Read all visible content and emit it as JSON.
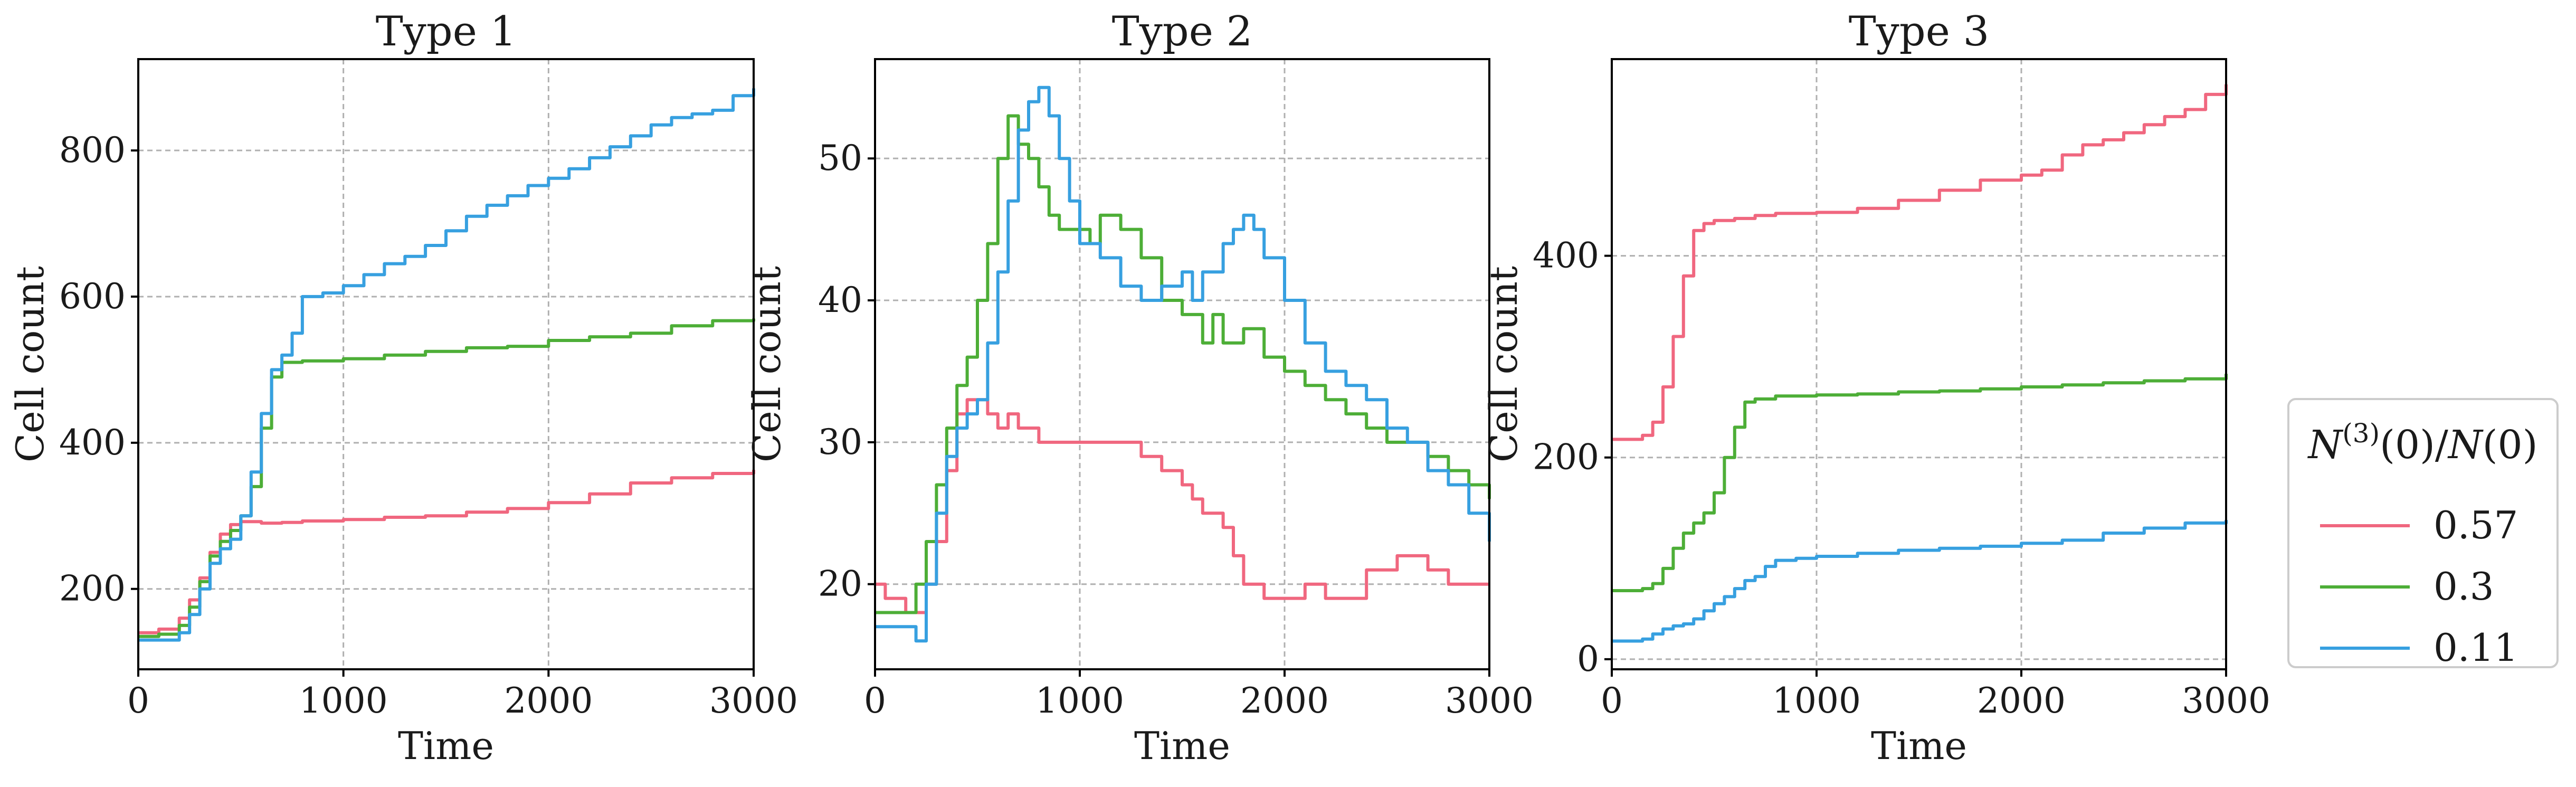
{
  "chart_data": [
    {
      "type": "line",
      "title": "Type 1",
      "xlabel": "Time",
      "ylabel": "Cell count",
      "xlim": [
        0,
        3000
      ],
      "ylim": [
        90,
        925
      ],
      "xticks": [
        "0",
        "1000",
        "2000",
        "3000"
      ],
      "xtick_values": [
        0,
        1000,
        2000,
        3000
      ],
      "yticks": [
        "200",
        "400",
        "600",
        "800"
      ],
      "ytick_values": [
        200,
        400,
        600,
        800
      ],
      "grid": true,
      "series": [
        {
          "name": "0.57",
          "color": "#f0677f",
          "x": [
            0,
            100,
            200,
            250,
            300,
            350,
            400,
            450,
            500,
            600,
            700,
            800,
            1000,
            1200,
            1400,
            1600,
            1800,
            2000,
            2200,
            2400,
            2600,
            2800,
            3000
          ],
          "y": [
            140,
            145,
            160,
            185,
            215,
            250,
            275,
            288,
            292,
            290,
            291,
            293,
            295,
            298,
            300,
            305,
            310,
            318,
            330,
            345,
            352,
            358,
            363
          ]
        },
        {
          "name": "0.3",
          "color": "#4dae37",
          "x": [
            0,
            100,
            200,
            250,
            300,
            350,
            400,
            450,
            500,
            550,
            600,
            650,
            700,
            800,
            1000,
            1200,
            1400,
            1600,
            1800,
            2000,
            2200,
            2400,
            2600,
            2800,
            3000
          ],
          "y": [
            135,
            138,
            150,
            175,
            210,
            245,
            265,
            280,
            300,
            340,
            420,
            490,
            510,
            512,
            515,
            520,
            525,
            530,
            532,
            540,
            545,
            550,
            560,
            567,
            570
          ]
        },
        {
          "name": "0.11",
          "color": "#37a0e0",
          "x": [
            0,
            100,
            200,
            250,
            300,
            350,
            400,
            450,
            500,
            550,
            600,
            650,
            700,
            750,
            800,
            900,
            1000,
            1100,
            1200,
            1300,
            1400,
            1500,
            1600,
            1700,
            1800,
            1900,
            2000,
            2100,
            2200,
            2300,
            2400,
            2500,
            2600,
            2700,
            2800,
            2900,
            3000
          ],
          "y": [
            130,
            130,
            140,
            165,
            200,
            235,
            255,
            268,
            300,
            360,
            440,
            500,
            520,
            550,
            600,
            605,
            615,
            630,
            645,
            655,
            670,
            690,
            710,
            725,
            738,
            752,
            762,
            775,
            790,
            805,
            820,
            835,
            845,
            850,
            855,
            875,
            885
          ]
        }
      ]
    },
    {
      "type": "line",
      "title": "Type 2",
      "xlabel": "Time",
      "ylabel": "Cell count",
      "xlim": [
        0,
        3000
      ],
      "ylim": [
        14,
        57
      ],
      "xticks": [
        "0",
        "1000",
        "2000",
        "3000"
      ],
      "xtick_values": [
        0,
        1000,
        2000,
        3000
      ],
      "yticks": [
        "20",
        "30",
        "40",
        "50"
      ],
      "ytick_values": [
        20,
        30,
        40,
        50
      ],
      "grid": true,
      "series": [
        {
          "name": "0.57",
          "color": "#f0677f",
          "x": [
            0,
            50,
            150,
            250,
            300,
            350,
            400,
            450,
            500,
            550,
            600,
            650,
            700,
            800,
            1000,
            1200,
            1300,
            1400,
            1500,
            1550,
            1600,
            1700,
            1750,
            1800,
            1900,
            2000,
            2100,
            2200,
            2400,
            2500,
            2550,
            2650,
            2700,
            2800,
            3000
          ],
          "y": [
            20,
            19,
            18,
            20,
            23,
            28,
            32,
            33,
            33,
            32,
            31,
            32,
            31,
            30,
            30,
            30,
            29,
            28,
            27,
            26,
            25,
            24,
            22,
            20,
            19,
            19,
            20,
            19,
            21,
            21,
            22,
            22,
            21,
            20,
            20
          ]
        },
        {
          "name": "0.3",
          "color": "#4dae37",
          "x": [
            0,
            100,
            200,
            250,
            300,
            350,
            400,
            450,
            500,
            550,
            600,
            650,
            700,
            750,
            800,
            850,
            900,
            1000,
            1050,
            1100,
            1200,
            1300,
            1400,
            1500,
            1600,
            1650,
            1700,
            1800,
            1900,
            2000,
            2100,
            2200,
            2300,
            2400,
            2500,
            2600,
            2700,
            2800,
            2900,
            3000
          ],
          "y": [
            18,
            18,
            20,
            23,
            27,
            31,
            34,
            36,
            40,
            44,
            50,
            53,
            51,
            50,
            48,
            46,
            45,
            45,
            44,
            46,
            45,
            43,
            40,
            39,
            37,
            39,
            37,
            38,
            36,
            35,
            34,
            33,
            32,
            31,
            30,
            30,
            29,
            28,
            27,
            26
          ]
        },
        {
          "name": "0.11",
          "color": "#37a0e0",
          "x": [
            0,
            100,
            200,
            250,
            300,
            350,
            400,
            450,
            500,
            550,
            600,
            650,
            700,
            750,
            800,
            850,
            900,
            950,
            1000,
            1100,
            1200,
            1300,
            1400,
            1500,
            1550,
            1600,
            1700,
            1750,
            1800,
            1850,
            1900,
            2000,
            2100,
            2200,
            2300,
            2400,
            2500,
            2600,
            2700,
            2800,
            2900,
            3000
          ],
          "y": [
            17,
            17,
            16,
            20,
            25,
            29,
            31,
            32,
            33,
            37,
            42,
            47,
            52,
            54,
            55,
            53,
            50,
            47,
            44,
            43,
            41,
            40,
            41,
            42,
            40,
            42,
            44,
            45,
            46,
            45,
            43,
            40,
            37,
            35,
            34,
            33,
            31,
            30,
            28,
            27,
            25,
            23
          ]
        }
      ]
    },
    {
      "type": "line",
      "title": "Type 3",
      "xlabel": "Time",
      "ylabel": "Cell count",
      "xlim": [
        0,
        3000
      ],
      "ylim": [
        -10,
        595
      ],
      "xticks": [
        "0",
        "1000",
        "2000",
        "3000"
      ],
      "xtick_values": [
        0,
        1000,
        2000,
        3000
      ],
      "yticks": [
        "0",
        "200",
        "400"
      ],
      "ytick_values": [
        0,
        200,
        400
      ],
      "grid": true,
      "series": [
        {
          "name": "0.57",
          "color": "#f0677f",
          "x": [
            0,
            100,
            150,
            200,
            250,
            300,
            350,
            400,
            450,
            500,
            600,
            700,
            800,
            1000,
            1200,
            1400,
            1600,
            1800,
            2000,
            2100,
            2200,
            2300,
            2400,
            2500,
            2600,
            2700,
            2800,
            2900,
            3000
          ],
          "y": [
            218,
            218,
            222,
            235,
            270,
            320,
            380,
            425,
            432,
            435,
            437,
            440,
            442,
            443,
            447,
            455,
            465,
            475,
            480,
            485,
            500,
            510,
            515,
            522,
            530,
            538,
            545,
            560,
            570
          ]
        },
        {
          "name": "0.3",
          "color": "#4dae37",
          "x": [
            0,
            100,
            150,
            200,
            250,
            300,
            350,
            400,
            450,
            500,
            550,
            600,
            650,
            700,
            800,
            1000,
            1200,
            1400,
            1600,
            1800,
            2000,
            2200,
            2400,
            2600,
            2800,
            3000
          ],
          "y": [
            68,
            68,
            70,
            75,
            90,
            110,
            125,
            135,
            145,
            165,
            200,
            230,
            255,
            258,
            261,
            262,
            263,
            265,
            266,
            268,
            270,
            272,
            274,
            276,
            278,
            283
          ]
        },
        {
          "name": "0.11",
          "color": "#37a0e0",
          "x": [
            0,
            150,
            200,
            250,
            300,
            350,
            400,
            450,
            500,
            550,
            600,
            650,
            700,
            750,
            800,
            900,
            1000,
            1200,
            1400,
            1600,
            1800,
            2000,
            2200,
            2400,
            2600,
            2800,
            3000
          ],
          "y": [
            18,
            20,
            25,
            30,
            33,
            35,
            40,
            48,
            55,
            62,
            70,
            78,
            82,
            92,
            98,
            100,
            102,
            105,
            108,
            110,
            112,
            115,
            118,
            125,
            130,
            135,
            138
          ]
        }
      ]
    }
  ],
  "legend": {
    "title": "N(3)(0)/N(0)",
    "entries": [
      {
        "label": "0.57",
        "color": "#f0677f"
      },
      {
        "label": "0.3",
        "color": "#4dae37"
      },
      {
        "label": "0.11",
        "color": "#37a0e0"
      }
    ]
  }
}
